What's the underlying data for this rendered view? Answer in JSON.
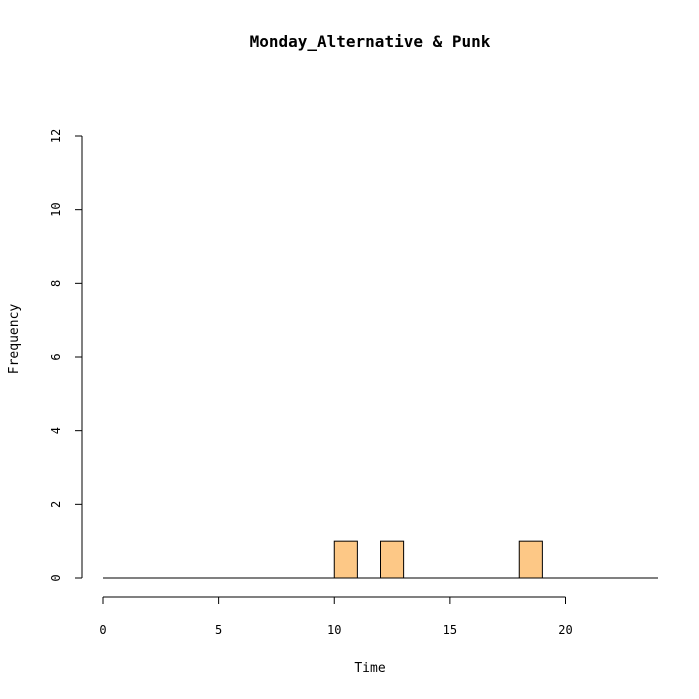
{
  "chart_data": {
    "type": "bar",
    "title": "Monday_Alternative & Punk",
    "xlabel": "Time",
    "ylabel": "Frequency",
    "xlim": [
      0,
      24
    ],
    "ylim": [
      0,
      12
    ],
    "x_ticks": [
      0,
      5,
      10,
      15,
      20
    ],
    "y_ticks": [
      0,
      2,
      4,
      6,
      8,
      10,
      12
    ],
    "bin_width": 1,
    "bins": [
      0,
      1,
      2,
      3,
      4,
      5,
      6,
      7,
      8,
      9,
      10,
      11,
      12,
      13,
      14,
      15,
      16,
      17,
      18,
      19,
      20,
      21,
      22,
      23
    ],
    "values": [
      0,
      0,
      0,
      0,
      0,
      0,
      0,
      0,
      0,
      0,
      1,
      0,
      1,
      0,
      0,
      0,
      0,
      0,
      1,
      0,
      0,
      0,
      0,
      0
    ],
    "bar_color": "#FDC886",
    "grid": false
  }
}
